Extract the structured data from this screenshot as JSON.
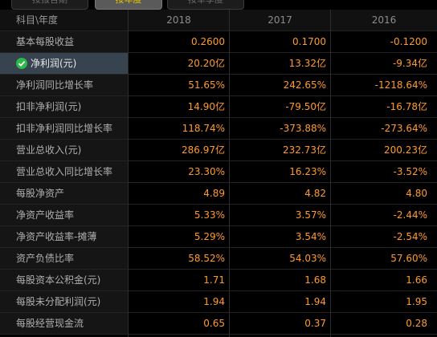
{
  "tabs": [
    {
      "label": "按报告期"
    },
    {
      "label": "按年度"
    },
    {
      "label": "按单季度"
    }
  ],
  "table": {
    "header": {
      "label": "科目\\年度",
      "years": [
        "2018",
        "2017",
        "2016"
      ]
    },
    "rows": [
      {
        "label": "基本每股收益",
        "values": [
          "0.2600",
          "0.1700",
          "-0.1200"
        ]
      },
      {
        "label": "净利润(元)",
        "values": [
          "20.20亿",
          "13.32亿",
          "-9.34亿"
        ],
        "selected": true
      },
      {
        "label": "净利润同比增长率",
        "values": [
          "51.65%",
          "242.65%",
          "-1218.64%"
        ]
      },
      {
        "label": "扣非净利润(元)",
        "values": [
          "14.90亿",
          "-79.50亿",
          "-16.78亿"
        ]
      },
      {
        "label": "扣非净利润同比增长率",
        "values": [
          "118.74%",
          "-373.88%",
          "-273.64%"
        ]
      },
      {
        "label": "营业总收入(元)",
        "values": [
          "286.97亿",
          "232.73亿",
          "200.23亿"
        ]
      },
      {
        "label": "营业总收入同比增长率",
        "values": [
          "23.30%",
          "16.23%",
          "-3.52%"
        ]
      },
      {
        "label": "每股净资产",
        "values": [
          "4.89",
          "4.82",
          "4.80"
        ]
      },
      {
        "label": "净资产收益率",
        "values": [
          "5.33%",
          "3.57%",
          "-2.44%"
        ]
      },
      {
        "label": "净资产收益率-摊薄",
        "values": [
          "5.29%",
          "3.54%",
          "-2.54%"
        ]
      },
      {
        "label": "资产负债比率",
        "values": [
          "58.52%",
          "54.03%",
          "57.60%"
        ]
      },
      {
        "label": "每股资本公积金(元)",
        "values": [
          "1.71",
          "1.68",
          "1.66"
        ]
      },
      {
        "label": "每股未分配利润(元)",
        "values": [
          "1.94",
          "1.94",
          "1.95"
        ]
      },
      {
        "label": "每股经营现金流",
        "values": [
          "0.65",
          "0.37",
          "0.28"
        ]
      }
    ]
  },
  "colors": {
    "value_text": "#ff9a2b",
    "selected_row_bg": "#37434f",
    "active_tab_text": "#e8c400",
    "check": "#2db84a"
  }
}
